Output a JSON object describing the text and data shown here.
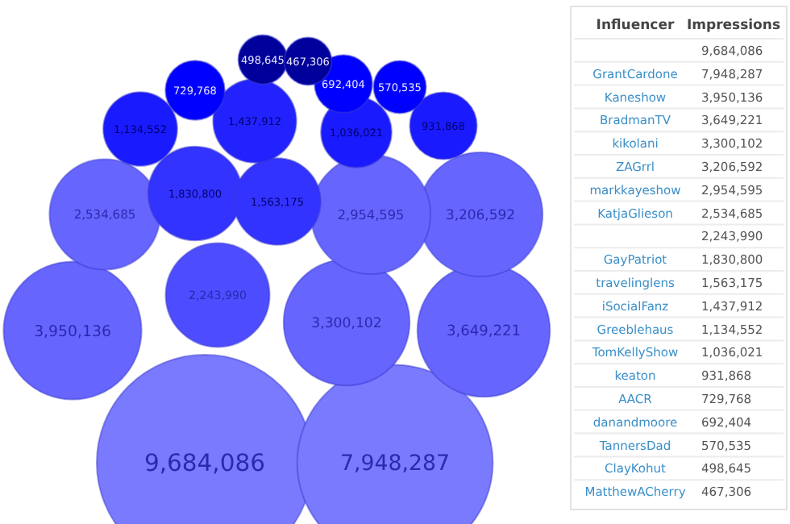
{
  "chart_data": {
    "type": "other",
    "annotations": [
      "Influencer",
      "Impressions"
    ],
    "categories": [
      null,
      "GrantCardone",
      "Kaneshow",
      "BradmanTV",
      "kikolani",
      "ZAGrrl",
      "markkayeshow",
      "KatjaGlieson",
      null,
      "GayPatriot",
      "travelinglens",
      "iSocialFanz",
      "Greeblehaus",
      "TomKellyShow",
      "keaton",
      "AACR",
      "danandmoore",
      "TannersDad",
      "ClayKohut",
      "MatthewACherry"
    ],
    "values": [
      9684086,
      7948287,
      3950136,
      3649221,
      3300102,
      3206592,
      2954595,
      2534685,
      2243990,
      1830800,
      1563175,
      1437912,
      1134552,
      1036021,
      931868,
      729768,
      692404,
      570535,
      498645,
      467306
    ],
    "value_labels": [
      "9,684,086",
      "7,948,287",
      "3,950,136",
      "3,649,221",
      "3,300,102",
      "3,206,592",
      "2,954,595",
      "2,534,685",
      "2,243,990",
      "1,830,800",
      "1,563,175",
      "1,437,912",
      "1,134,552",
      "1,036,021",
      "931,868",
      "729,768",
      "692,404",
      "570,535",
      "498,645",
      "467,306"
    ],
    "colors": [
      "#7a7aff",
      "#7a7aff",
      "#6666ff",
      "#6666ff",
      "#6666ff",
      "#6666ff",
      "#6666ff",
      "#6666ff",
      "#4d4dff",
      "#3333ff",
      "#3333ff",
      "#2222ff",
      "#1a1aff",
      "#1a1aff",
      "#1a1aff",
      "#0000ff",
      "#0000ff",
      "#0000ff",
      "#00009a",
      "#00009a"
    ]
  }
}
